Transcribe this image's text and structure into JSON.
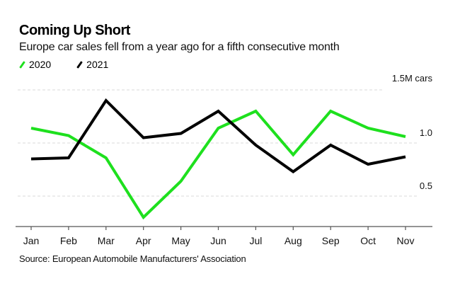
{
  "chart_data": {
    "type": "line",
    "title": "Coming Up Short",
    "subtitle": "Europe car sales fell from a year ago for a fifth consecutive month",
    "xlabel": "",
    "ylabel": "",
    "categories": [
      "Jan",
      "Feb",
      "Mar",
      "Apr",
      "May",
      "Jun",
      "Jul",
      "Aug",
      "Sep",
      "Oct",
      "Nov"
    ],
    "series": [
      {
        "name": "2020",
        "color": "#1ee01e",
        "values": [
          1.14,
          1.07,
          0.86,
          0.3,
          0.64,
          1.14,
          1.3,
          0.89,
          1.3,
          1.14,
          1.06
        ]
      },
      {
        "name": "2021",
        "color": "#000000",
        "values": [
          0.85,
          0.86,
          1.4,
          1.05,
          1.09,
          1.3,
          0.98,
          0.73,
          0.98,
          0.8,
          0.87
        ]
      }
    ],
    "ylim": [
      0.2,
      1.5
    ],
    "yticks": [
      {
        "value": 1.5,
        "label": "1.5M cars"
      },
      {
        "value": 1.0,
        "label": "1.0"
      },
      {
        "value": 0.5,
        "label": "0.5"
      }
    ],
    "grid": true,
    "legend_position": "top-left",
    "source": "Source: European Automobile Manufacturers' Association"
  }
}
